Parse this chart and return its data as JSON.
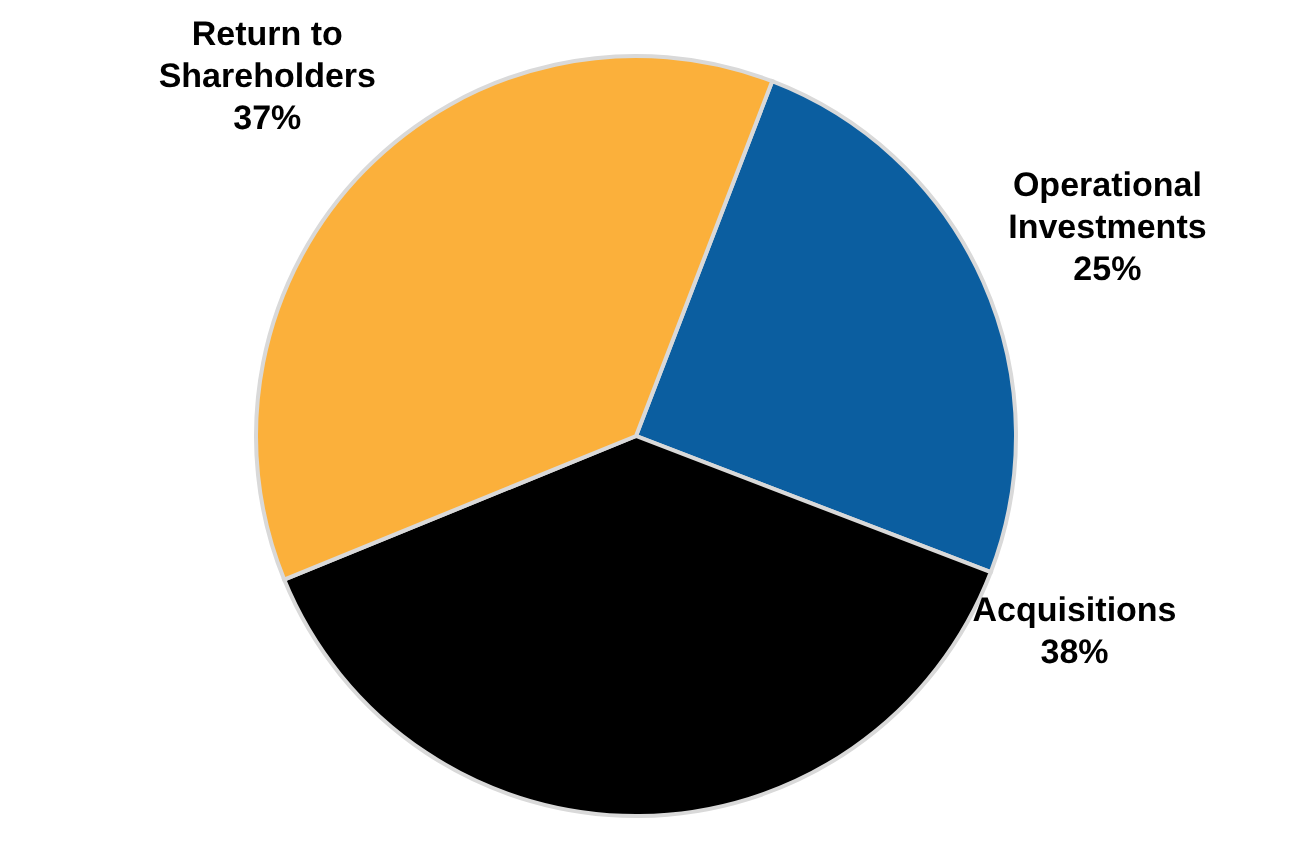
{
  "chart_data": {
    "type": "pie",
    "categories": [
      "Operational Investments",
      "Acquisitions",
      "Return to Shareholders"
    ],
    "values": [
      25,
      38,
      37
    ],
    "colors": [
      "#0b5ea0",
      "#000000",
      "#fbb03b"
    ],
    "value_labels": [
      "25%",
      "38%",
      "37%"
    ]
  }
}
